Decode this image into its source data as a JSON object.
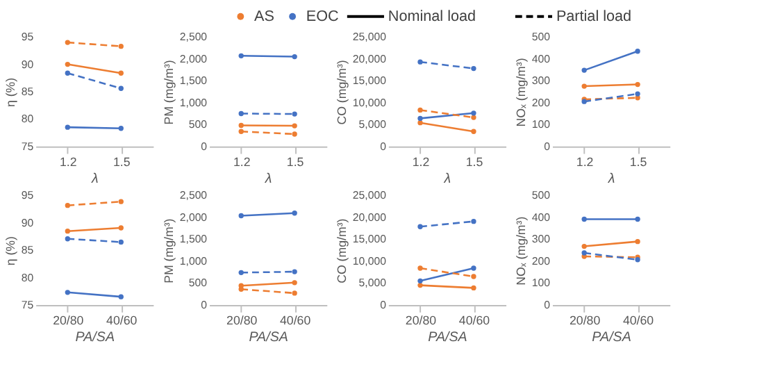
{
  "chart_data": [
    {
      "type": "line",
      "ylabel": "η (%)",
      "xlabel": "λ",
      "categories": [
        "1.2",
        "1.5"
      ],
      "ylim": [
        75,
        95
      ],
      "yticks": [
        75,
        80,
        85,
        90,
        95
      ],
      "marker": "circle",
      "legend": "top",
      "annotations": [
        "Nominal load",
        "Partial load"
      ],
      "series": [
        {
          "name": "AS",
          "color": "#ed7d31",
          "line_style": "solid",
          "values": [
            90.0,
            88.4
          ]
        },
        {
          "color": "#ed7d31",
          "line_style": "dashed",
          "values": [
            94.0,
            93.3
          ]
        },
        {
          "name": "EOC",
          "color": "#4472c4",
          "line_style": "solid",
          "values": [
            78.5,
            78.3
          ]
        },
        {
          "color": "#4472c4",
          "line_style": "dashed",
          "values": [
            88.4,
            85.6
          ]
        }
      ]
    },
    {
      "type": "line",
      "ylabel": "PM (mg/m³)",
      "xlabel": "λ",
      "categories": [
        "1.2",
        "1.5"
      ],
      "ylim": [
        0,
        2500
      ],
      "yticks": [
        0,
        {
          "value": 500,
          "label": "500"
        },
        {
          "value": 1000,
          "label": "1,000"
        },
        {
          "value": 1500,
          "label": "1,500"
        },
        {
          "value": 2000,
          "label": "2,000"
        },
        {
          "value": 2500,
          "label": "2,500"
        }
      ],
      "marker": "circle",
      "series": [
        {
          "color": "#ed7d31",
          "line_style": "solid",
          "values": [
            480,
            470
          ]
        },
        {
          "color": "#ed7d31",
          "line_style": "dashed",
          "values": [
            340,
            280
          ]
        },
        {
          "color": "#4472c4",
          "line_style": "solid",
          "values": [
            2070,
            2050
          ]
        },
        {
          "color": "#4472c4",
          "line_style": "dashed",
          "values": [
            750,
            740
          ]
        }
      ]
    },
    {
      "type": "line",
      "ylabel": "CO (mg/m³)",
      "xlabel": "λ",
      "categories": [
        "1.2",
        "1.5"
      ],
      "ylim": [
        0,
        25000
      ],
      "yticks": [
        0,
        {
          "value": 5000,
          "label": "5,000"
        },
        {
          "value": 10000,
          "label": "10,000"
        },
        {
          "value": 15000,
          "label": "15,000"
        },
        {
          "value": 20000,
          "label": "20,000"
        },
        {
          "value": 25000,
          "label": "25,000"
        }
      ],
      "marker": "circle",
      "series": [
        {
          "color": "#ed7d31",
          "line_style": "solid",
          "values": [
            5400,
            3400
          ]
        },
        {
          "color": "#ed7d31",
          "line_style": "dashed",
          "values": [
            8300,
            6600
          ]
        },
        {
          "color": "#4472c4",
          "line_style": "solid",
          "values": [
            6400,
            7600
          ]
        },
        {
          "color": "#4472c4",
          "line_style": "dashed",
          "values": [
            19300,
            17800
          ]
        }
      ]
    },
    {
      "type": "line",
      "ylabel": "NOₓ (mg/m³)",
      "xlabel": "λ",
      "categories": [
        "1.2",
        "1.5"
      ],
      "ylim": [
        0,
        500
      ],
      "yticks": [
        0,
        100,
        200,
        300,
        400,
        500
      ],
      "marker": "circle",
      "series": [
        {
          "color": "#ed7d31",
          "line_style": "solid",
          "values": [
            275,
            283
          ]
        },
        {
          "color": "#ed7d31",
          "line_style": "dashed",
          "values": [
            215,
            222
          ]
        },
        {
          "color": "#4472c4",
          "line_style": "solid",
          "values": [
            348,
            435
          ]
        },
        {
          "color": "#4472c4",
          "line_style": "dashed",
          "values": [
            205,
            240
          ]
        }
      ]
    },
    {
      "type": "line",
      "ylabel": "η (%)",
      "xlabel": "PA/SA",
      "categories": [
        "20/80",
        "40/60"
      ],
      "ylim": [
        75,
        95
      ],
      "yticks": [
        75,
        80,
        85,
        90,
        95
      ],
      "marker": "circle",
      "series": [
        {
          "color": "#ed7d31",
          "line_style": "solid",
          "values": [
            88.5,
            89.1
          ]
        },
        {
          "color": "#ed7d31",
          "line_style": "dashed",
          "values": [
            93.2,
            93.9
          ]
        },
        {
          "color": "#4472c4",
          "line_style": "solid",
          "values": [
            77.3,
            76.5
          ]
        },
        {
          "color": "#4472c4",
          "line_style": "dashed",
          "values": [
            87.1,
            86.5
          ]
        }
      ]
    },
    {
      "type": "line",
      "ylabel": "PM (mg/m³)",
      "xlabel": "PA/SA",
      "categories": [
        "20/80",
        "40/60"
      ],
      "ylim": [
        0,
        2500
      ],
      "yticks": [
        0,
        {
          "value": 500,
          "label": "500"
        },
        {
          "value": 1000,
          "label": "1,000"
        },
        {
          "value": 1500,
          "label": "1,500"
        },
        {
          "value": 2000,
          "label": "2,000"
        },
        {
          "value": 2500,
          "label": "2,500"
        }
      ],
      "marker": "circle",
      "series": [
        {
          "color": "#ed7d31",
          "line_style": "solid",
          "values": [
            440,
            510
          ]
        },
        {
          "color": "#ed7d31",
          "line_style": "dashed",
          "values": [
            360,
            270
          ]
        },
        {
          "color": "#4472c4",
          "line_style": "solid",
          "values": [
            2040,
            2100
          ]
        },
        {
          "color": "#4472c4",
          "line_style": "dashed",
          "values": [
            740,
            760
          ]
        }
      ]
    },
    {
      "type": "line",
      "ylabel": "CO (mg/m³)",
      "xlabel": "PA/SA",
      "categories": [
        "20/80",
        "40/60"
      ],
      "ylim": [
        0,
        25000
      ],
      "yticks": [
        0,
        {
          "value": 5000,
          "label": "5,000"
        },
        {
          "value": 10000,
          "label": "10,000"
        },
        {
          "value": 15000,
          "label": "15,000"
        },
        {
          "value": 20000,
          "label": "20,000"
        },
        {
          "value": 25000,
          "label": "25,000"
        }
      ],
      "marker": "circle",
      "series": [
        {
          "color": "#ed7d31",
          "line_style": "solid",
          "values": [
            4500,
            3900
          ]
        },
        {
          "color": "#ed7d31",
          "line_style": "dashed",
          "values": [
            8400,
            6500
          ]
        },
        {
          "color": "#4472c4",
          "line_style": "solid",
          "values": [
            5500,
            8400
          ]
        },
        {
          "color": "#4472c4",
          "line_style": "dashed",
          "values": [
            17900,
            19100
          ]
        }
      ]
    },
    {
      "type": "line",
      "ylabel": "NOₓ (mg/m³)",
      "xlabel": "PA/SA",
      "categories": [
        "20/80",
        "40/60"
      ],
      "ylim": [
        0,
        500
      ],
      "yticks": [
        0,
        100,
        200,
        300,
        400,
        500
      ],
      "marker": "circle",
      "series": [
        {
          "color": "#ed7d31",
          "line_style": "solid",
          "values": [
            268,
            290
          ]
        },
        {
          "color": "#ed7d31",
          "line_style": "dashed",
          "values": [
            222,
            218
          ]
        },
        {
          "color": "#4472c4",
          "line_style": "solid",
          "values": [
            392,
            392
          ]
        },
        {
          "color": "#4472c4",
          "line_style": "dashed",
          "values": [
            238,
            207
          ]
        }
      ]
    }
  ]
}
